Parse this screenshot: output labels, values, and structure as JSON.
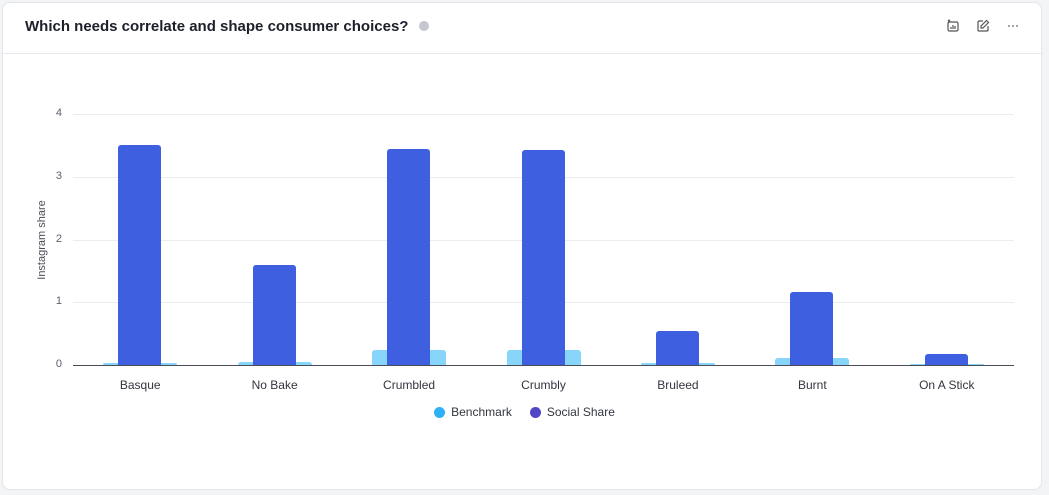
{
  "header": {
    "title": "Which needs correlate and shape consumer choices?",
    "info_icon": "info-icon",
    "actions": [
      {
        "name": "add-chart-icon"
      },
      {
        "name": "edit-icon"
      },
      {
        "name": "more-icon",
        "label": "···"
      }
    ]
  },
  "colors": {
    "social_bar": "#3d5fe0",
    "benchmark_bar": "#87d5fb",
    "legend_benchmark": "#2eb0f5",
    "legend_social": "#5146c8"
  },
  "legend": {
    "benchmark": "Benchmark",
    "social": "Social Share"
  },
  "chart_data": {
    "type": "bar",
    "title": "Which needs correlate and shape consumer choices?",
    "xlabel": "",
    "ylabel": "Instagram share",
    "ylim": [
      0,
      4
    ],
    "yticks": [
      "0",
      "1",
      "2",
      "3",
      "4"
    ],
    "grid": true,
    "legend_position": "bottom",
    "categories": [
      "Basque",
      "No Bake",
      "Crumbled",
      "Crumbly",
      "Bruleed",
      "Burnt",
      "On A Stick"
    ],
    "series": [
      {
        "name": "Benchmark",
        "values": [
          0.03,
          0.04,
          0.24,
          0.24,
          0.03,
          0.11,
          0.01
        ]
      },
      {
        "name": "Social Share",
        "values": [
          3.51,
          1.59,
          3.44,
          3.43,
          0.54,
          1.16,
          0.18
        ]
      }
    ]
  }
}
